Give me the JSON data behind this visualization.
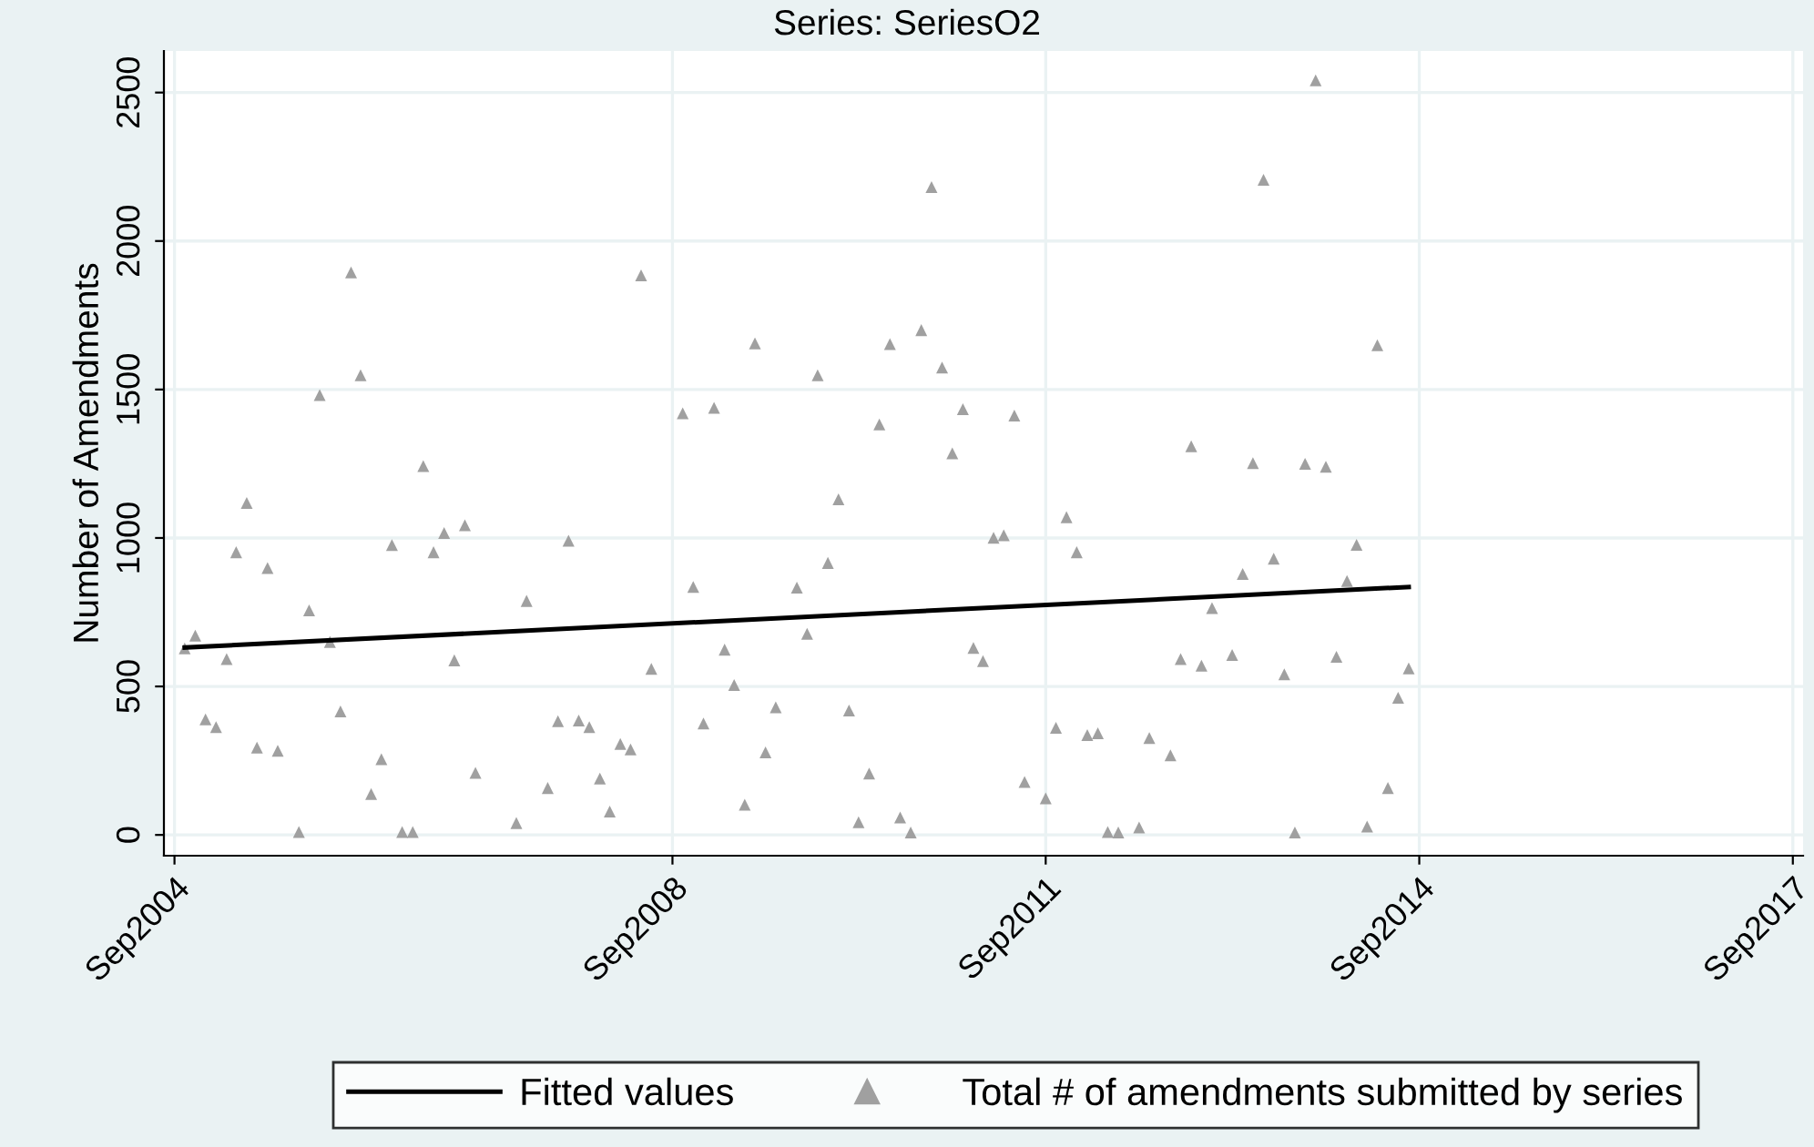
{
  "chart_data": {
    "type": "scatter",
    "title": "Series: SeriesO2",
    "ylabel": "Number of Amendments",
    "xlim": [
      "2004-08-01",
      "2017-10-01"
    ],
    "ylim": [
      -70,
      2640
    ],
    "xticks": [
      {
        "value": "2004-09",
        "label": "Sep2004"
      },
      {
        "value": "2008-09",
        "label": "Sep2008"
      },
      {
        "value": "2011-09",
        "label": "Sep2011"
      },
      {
        "value": "2014-09",
        "label": "Sep2014"
      },
      {
        "value": "2017-09",
        "label": "Sep2017"
      }
    ],
    "yticks": [
      0,
      500,
      1000,
      1500,
      2000,
      2500
    ],
    "grid": true,
    "legend": "bottom",
    "series": [
      {
        "name": "Fitted values",
        "type": "line",
        "color": "#000000",
        "marker": "none",
        "line_style": "solid",
        "x": [
          "2004-10",
          "2014-08"
        ],
        "values": [
          631,
          835
        ]
      },
      {
        "name": "Total # of amendments submitted by series",
        "color": "#a0a0a0",
        "marker": "triangle",
        "x": [
          "2004-10",
          "2004-11",
          "2004-12",
          "2005-01",
          "2005-02",
          "2005-03",
          "2005-04",
          "2005-05",
          "2005-06",
          "2005-07",
          "2005-09",
          "2005-10",
          "2005-11",
          "2005-12",
          "2006-01",
          "2006-02",
          "2006-03",
          "2006-04",
          "2006-05",
          "2006-06",
          "2006-07",
          "2006-08",
          "2006-09",
          "2006-10",
          "2006-11",
          "2006-12",
          "2007-01",
          "2007-02",
          "2007-06",
          "2007-07",
          "2007-09",
          "2007-10",
          "2007-11",
          "2007-12",
          "2008-01",
          "2008-02",
          "2008-03",
          "2008-04",
          "2008-05",
          "2008-06",
          "2008-07",
          "2008-10",
          "2008-11",
          "2008-12",
          "2009-01",
          "2009-02",
          "2009-03",
          "2009-04",
          "2009-05",
          "2009-06",
          "2009-07",
          "2009-09",
          "2009-10",
          "2009-11",
          "2009-12",
          "2010-01",
          "2010-02",
          "2010-03",
          "2010-04",
          "2010-05",
          "2010-06",
          "2010-07",
          "2010-08",
          "2010-09",
          "2010-10",
          "2010-11",
          "2010-12",
          "2011-01",
          "2011-02",
          "2011-03",
          "2011-04",
          "2011-05",
          "2011-06",
          "2011-07",
          "2011-09",
          "2011-10",
          "2011-11",
          "2011-12",
          "2012-01",
          "2012-02",
          "2012-03",
          "2012-04",
          "2012-06",
          "2012-07",
          "2012-09",
          "2012-10",
          "2012-11",
          "2012-12",
          "2013-01",
          "2013-03",
          "2013-04",
          "2013-05",
          "2013-06",
          "2013-07",
          "2013-08",
          "2013-09",
          "2013-10",
          "2013-11",
          "2013-12",
          "2014-01",
          "2014-02",
          "2014-03",
          "2014-04",
          "2014-05",
          "2014-06",
          "2014-07",
          "2014-08"
        ],
        "values": [
          628,
          671,
          389,
          363,
          592,
          952,
          1118,
          294,
          899,
          283,
          10,
          756,
          1481,
          650,
          416,
          1894,
          1548,
          138,
          255,
          976,
          10,
          10,
          1242,
          952,
          1017,
          588,
          1043,
          209,
          40,
          788,
          158,
          383,
          991,
          385,
          363,
          190,
          79,
          306,
          288,
          1884,
          559,
          1420,
          835,
          375,
          1438,
          624,
          505,
          102,
          1655,
          278,
          430,
          833,
          677,
          1548,
          916,
          1130,
          419,
          43,
          207,
          1382,
          1653,
          59,
          8,
          1700,
          2182,
          1574,
          1285,
          1434,
          630,
          585,
          1001,
          1009,
          1412,
          178,
          123,
          361,
          1070,
          952,
          336,
          342,
          10,
          8,
          25,
          326,
          268,
          592,
          1309,
          570,
          764,
          606,
          879,
          1252,
          2206,
          930,
          541,
          8,
          1250,
          2541,
          1240,
          600,
          855,
          977,
          28,
          1649,
          158,
          462,
          561
        ]
      }
    ]
  }
}
